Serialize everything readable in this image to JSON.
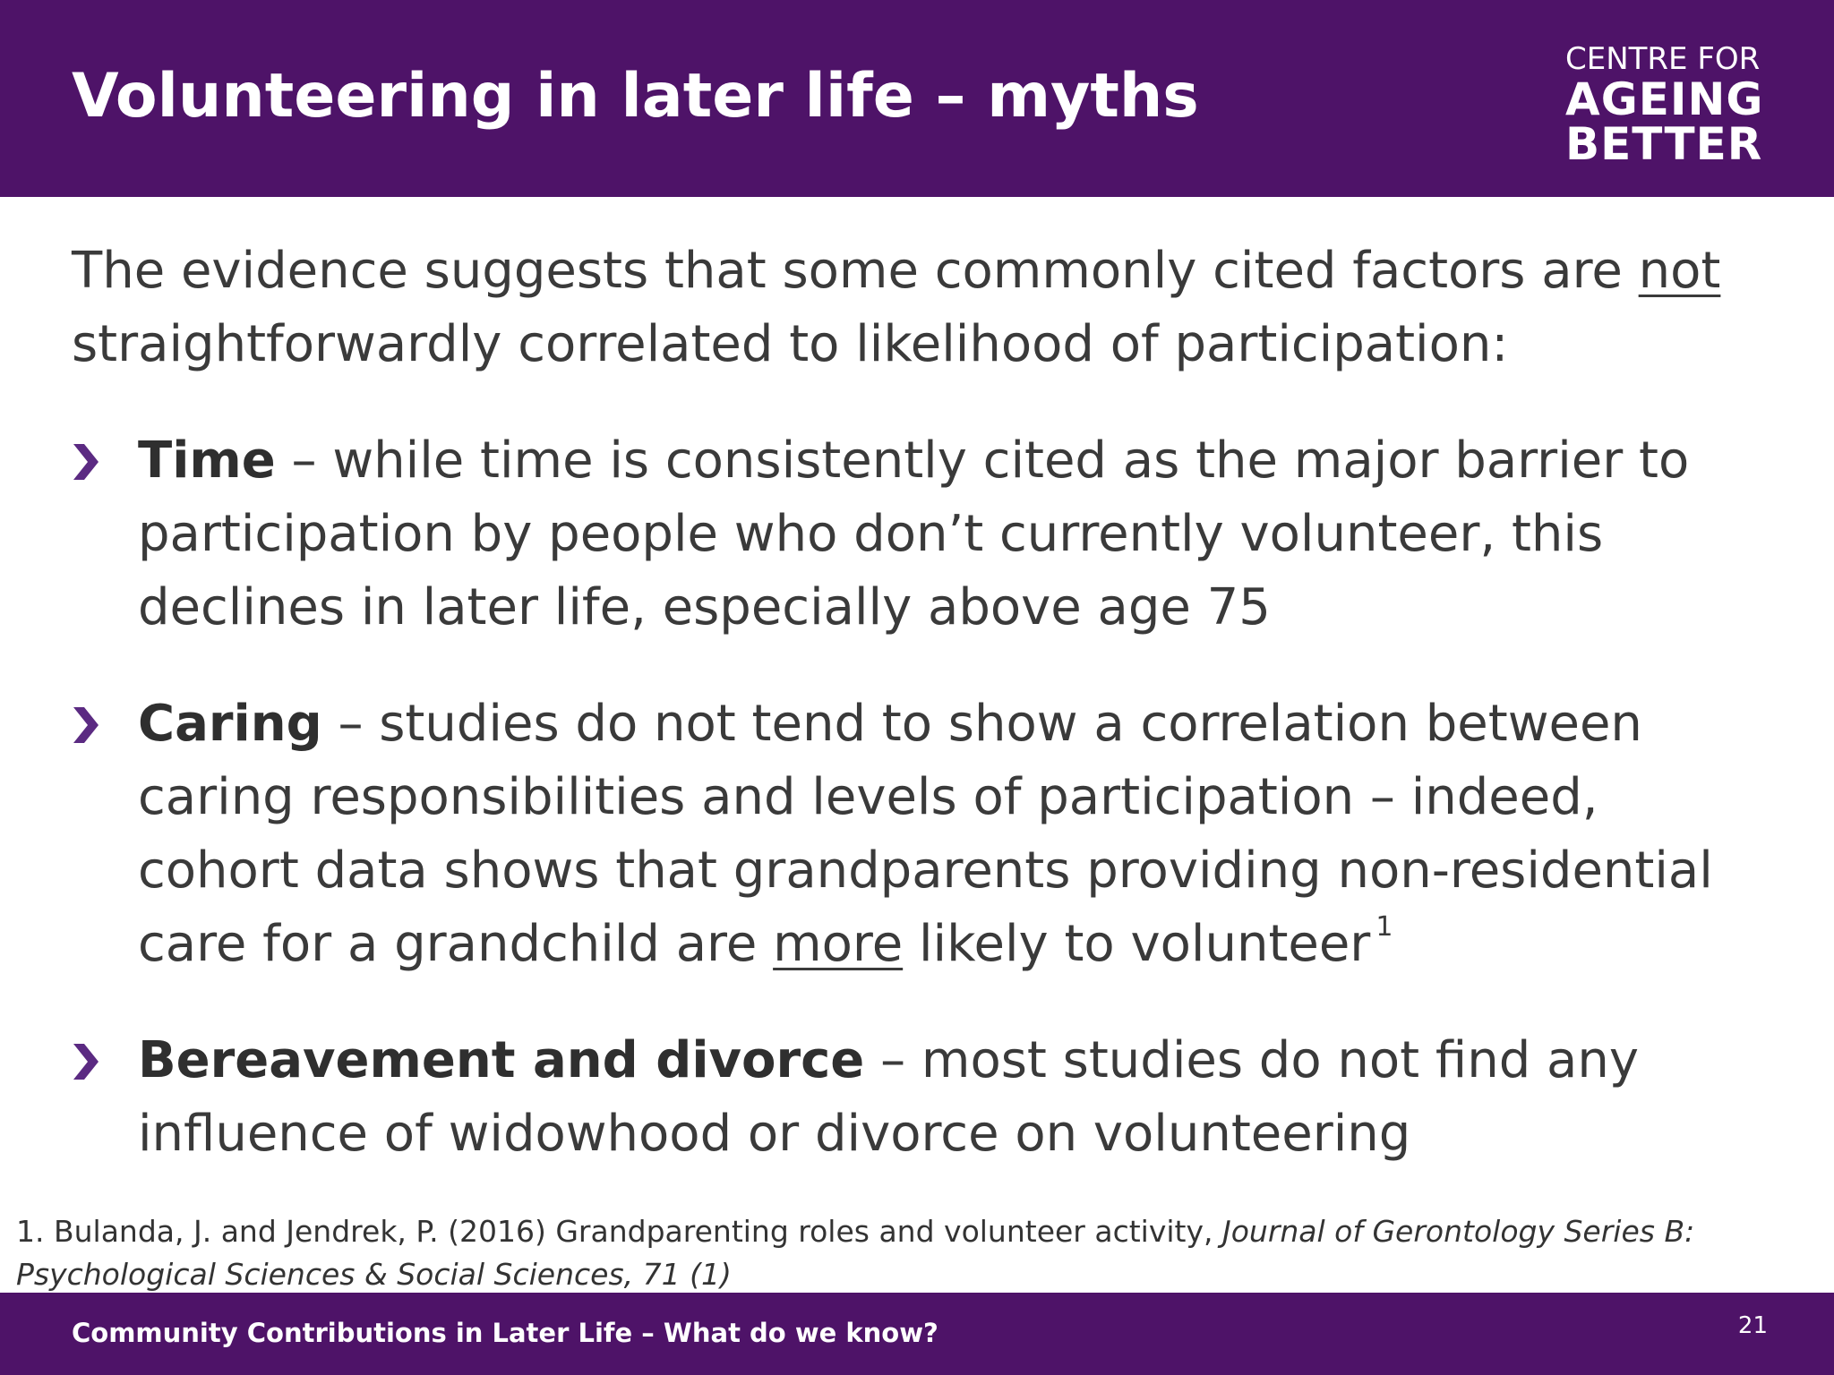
{
  "header": {
    "title": "Volunteering in later life – myths",
    "logo": {
      "line1": "CENTRE FOR",
      "line2": "AGEING",
      "line3": "BETTER"
    }
  },
  "intro": {
    "before": "The evidence suggests that some commonly cited factors are ",
    "underlined": "not",
    "after": " straightforwardly correlated to likelihood of participation:"
  },
  "bullets": [
    {
      "term": "Time",
      "text": " – while time is consistently cited as the major barrier to participation by people who don’t currently volunteer, this declines in later life, especially above age 75"
    },
    {
      "term": "Caring",
      "text_before": " – studies do not tend to show a correlation between caring responsibilities and levels of participation – indeed, cohort data shows that grandparents providing non-residential care for a grandchild are ",
      "underlined": "more",
      "text_after": " likely to volunteer",
      "reference": "1"
    },
    {
      "term": "Bereavement and divorce",
      "text": " – most studies do not find any influence of widowhood or divorce on volunteering"
    }
  ],
  "footnote": {
    "plain": "1. Bulanda, J. and Jendrek, P. (2016) Grandparenting roles and volunteer activity, ",
    "italic": "Journal of Gerontology Series B: Psychological Sciences & Social Sciences, 71 (1)"
  },
  "footer": {
    "text": "Community Contributions in Later Life – What do we know?",
    "page_number": "21"
  },
  "colors": {
    "brand_purple": "#4e1368",
    "chevron_purple": "#5b2a82",
    "body_text": "#3a3a3a"
  },
  "icons": {
    "bullet": "chevron-right-icon"
  }
}
